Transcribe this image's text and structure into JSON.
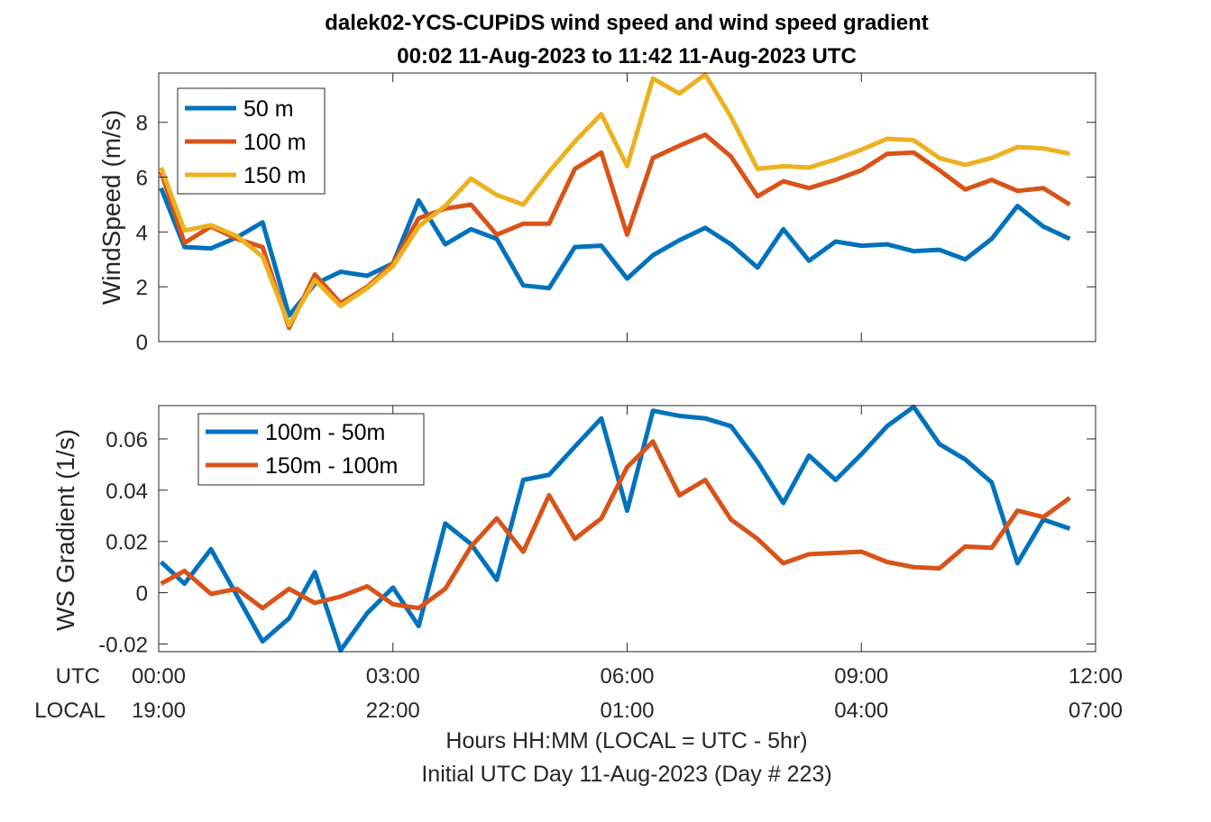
{
  "title_line1": "dalek02-YCS-CUPiDS  wind speed and wind speed gradient",
  "title_line2": "00:02 11-Aug-2023 to 11:42 11-Aug-2023  UTC",
  "xaxis": {
    "row_labels": [
      "UTC",
      "LOCAL"
    ],
    "utc_ticks": [
      "00:00",
      "03:00",
      "06:00",
      "09:00",
      "12:00"
    ],
    "local_ticks": [
      "19:00",
      "22:00",
      "01:00",
      "04:00",
      "07:00"
    ],
    "caption_line1": "Hours HH:MM  (LOCAL = UTC - 5hr)",
    "caption_line2": "Initial UTC Day 11-Aug-2023 (Day # 223)"
  },
  "colors": {
    "blue": "#0072BD",
    "orange": "#D95319",
    "yellow": "#EDB120"
  },
  "chart_data": [
    {
      "type": "line",
      "ylabel": "WindSpeed (m/s)",
      "xlim": [
        0,
        12
      ],
      "ylim": [
        0,
        9.8
      ],
      "yticks": [
        0,
        2,
        4,
        6,
        8
      ],
      "ytick_labels": [
        "0",
        "2",
        "4",
        "6",
        "8"
      ],
      "grid": false,
      "legend_position": "top-left",
      "x": [
        0.03,
        0.33,
        0.67,
        1.0,
        1.33,
        1.67,
        2.0,
        2.33,
        2.67,
        3.0,
        3.33,
        3.67,
        4.0,
        4.33,
        4.67,
        5.0,
        5.33,
        5.67,
        6.0,
        6.33,
        6.67,
        7.0,
        7.33,
        7.67,
        8.0,
        8.33,
        8.67,
        9.0,
        9.33,
        9.67,
        10.0,
        10.33,
        10.67,
        11.0,
        11.33,
        11.67
      ],
      "series": [
        {
          "name": "50 m",
          "color": "#0072BD",
          "values": [
            5.6,
            3.45,
            3.4,
            3.8,
            4.35,
            0.95,
            2.1,
            2.55,
            2.4,
            2.85,
            5.15,
            3.55,
            4.1,
            3.75,
            2.05,
            1.95,
            3.45,
            3.5,
            2.3,
            3.15,
            3.7,
            4.15,
            3.55,
            2.7,
            4.1,
            2.95,
            3.65,
            3.5,
            3.55,
            3.3,
            3.35,
            3.0,
            3.75,
            4.95,
            4.2,
            3.75
          ]
        },
        {
          "name": "100 m",
          "color": "#D95319",
          "values": [
            6.2,
            3.6,
            4.2,
            3.75,
            3.45,
            0.5,
            2.45,
            1.4,
            2.0,
            2.85,
            4.5,
            4.85,
            5.0,
            3.9,
            4.3,
            4.3,
            6.3,
            6.9,
            3.9,
            6.7,
            7.15,
            7.55,
            6.75,
            5.3,
            5.85,
            5.6,
            5.9,
            6.25,
            6.85,
            6.9,
            6.25,
            5.55,
            5.9,
            5.5,
            5.6,
            5.0
          ]
        },
        {
          "name": "150 m",
          "color": "#EDB120",
          "values": [
            6.35,
            4.05,
            4.25,
            3.85,
            3.1,
            0.6,
            2.25,
            1.3,
            1.95,
            2.75,
            4.2,
            4.95,
            5.95,
            5.35,
            5.0,
            6.2,
            7.3,
            8.3,
            6.4,
            9.6,
            9.05,
            9.75,
            8.2,
            6.3,
            6.4,
            6.35,
            6.65,
            7.0,
            7.4,
            7.35,
            6.7,
            6.45,
            6.7,
            7.1,
            7.05,
            6.85
          ]
        }
      ]
    },
    {
      "type": "line",
      "ylabel": "WS Gradient (1/s)",
      "xlim": [
        0,
        12
      ],
      "ylim": [
        -0.023,
        0.073
      ],
      "yticks": [
        -0.02,
        0,
        0.02,
        0.04,
        0.06
      ],
      "ytick_labels": [
        "-0.02",
        "0",
        "0.02",
        "0.04",
        "0.06"
      ],
      "grid": false,
      "legend_position": "top-left",
      "x": [
        0.03,
        0.33,
        0.67,
        1.0,
        1.33,
        1.67,
        2.0,
        2.33,
        2.67,
        3.0,
        3.33,
        3.67,
        4.0,
        4.33,
        4.67,
        5.0,
        5.33,
        5.67,
        6.0,
        6.33,
        6.67,
        7.0,
        7.33,
        7.67,
        8.0,
        8.33,
        8.67,
        9.0,
        9.33,
        9.67,
        10.0,
        10.33,
        10.67,
        11.0,
        11.33,
        11.67
      ],
      "series": [
        {
          "name": "100m - 50m",
          "color": "#0072BD",
          "values": [
            0.012,
            0.0035,
            0.017,
            -0.001,
            -0.019,
            -0.01,
            0.008,
            -0.0225,
            -0.008,
            0.002,
            -0.013,
            0.027,
            0.019,
            0.005,
            0.044,
            0.046,
            0.057,
            0.068,
            0.032,
            0.071,
            0.069,
            0.068,
            0.065,
            0.051,
            0.035,
            0.0535,
            0.044,
            0.054,
            0.065,
            0.0725,
            0.058,
            0.052,
            0.043,
            0.0115,
            0.0285,
            0.025
          ]
        },
        {
          "name": "150m - 100m",
          "color": "#D95319",
          "values": [
            0.0035,
            0.0085,
            -0.0005,
            0.0015,
            -0.006,
            0.0015,
            -0.004,
            -0.0015,
            0.0025,
            -0.0045,
            -0.006,
            0.0015,
            0.018,
            0.029,
            0.016,
            0.038,
            0.021,
            0.029,
            0.049,
            0.059,
            0.038,
            0.044,
            0.0285,
            0.021,
            0.0115,
            0.015,
            0.0155,
            0.016,
            0.012,
            0.01,
            0.0095,
            0.018,
            0.0175,
            0.032,
            0.0295,
            0.037
          ]
        }
      ]
    }
  ]
}
